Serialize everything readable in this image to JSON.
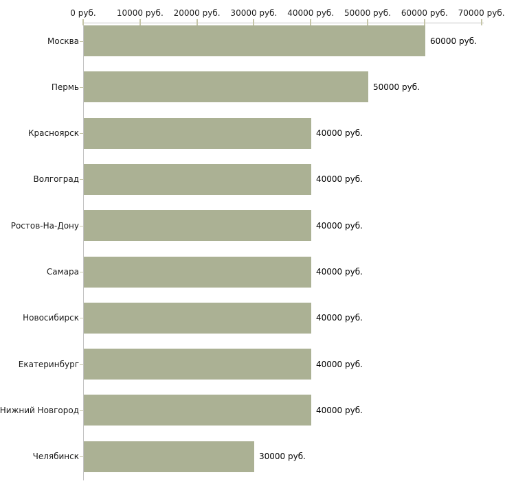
{
  "chart_data": {
    "type": "bar",
    "orientation": "horizontal",
    "title": "",
    "xlabel": "",
    "ylabel": "",
    "unit": "руб.",
    "categories": [
      "Москва",
      "Пермь",
      "Красноярск",
      "Волгоград",
      "Ростов-На-Дону",
      "Самара",
      "Новосибирск",
      "Екатеринбург",
      "Нижний Новгород",
      "Челябинск"
    ],
    "values": [
      60000,
      50000,
      40000,
      40000,
      40000,
      40000,
      40000,
      40000,
      40000,
      30000
    ],
    "value_labels": [
      "60000 руб.",
      "50000 руб.",
      "40000 руб.",
      "40000 руб.",
      "40000 руб.",
      "40000 руб.",
      "40000 руб.",
      "40000 руб.",
      "40000 руб.",
      "30000 руб."
    ],
    "x_tick_values": [
      0,
      10000,
      20000,
      30000,
      40000,
      50000,
      60000,
      70000
    ],
    "x_tick_labels": [
      "0 руб.",
      "10000 руб.",
      "20000 руб.",
      "30000 руб.",
      "40000 руб.",
      "50000 руб.",
      "60000 руб.",
      "70000 руб."
    ],
    "xlim": [
      0,
      70000
    ],
    "x_axis_position": "top",
    "grid": false,
    "legend": "none",
    "colors": {
      "bar": "#abb194",
      "axis_line": "#c2c2c2",
      "tick": "#c6c6a8",
      "text": "#1a1a1a",
      "value_text": "#000000",
      "background": "#ffffff"
    }
  }
}
